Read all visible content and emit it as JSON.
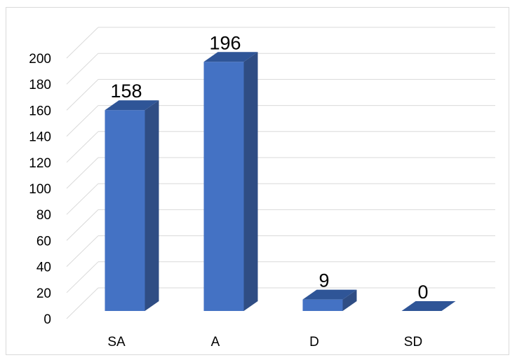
{
  "chart_data": {
    "type": "bar",
    "style": "3d-column",
    "categories": [
      "SA",
      "A",
      "D",
      "SD"
    ],
    "values": [
      158,
      196,
      9,
      0
    ],
    "title": "",
    "xlabel": "",
    "ylabel": "",
    "ylim": [
      0,
      200
    ],
    "yticks": [
      0,
      20,
      40,
      60,
      80,
      100,
      120,
      140,
      160,
      180,
      200
    ],
    "grid": true,
    "legend": "none",
    "data_labels": true,
    "colors": {
      "front": "#4472C4",
      "side": "#2F4D84",
      "top": "#2F5597",
      "grid": "#d9d9d9"
    }
  }
}
